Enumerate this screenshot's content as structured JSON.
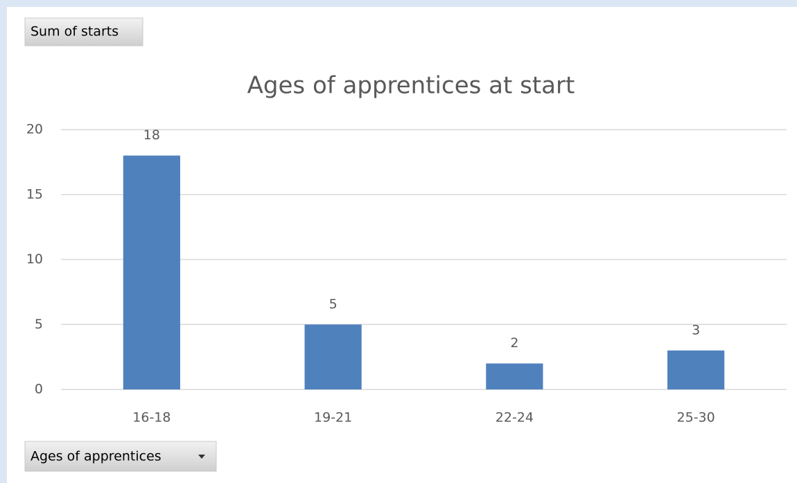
{
  "chart_data": {
    "type": "bar",
    "title": "Ages of apprentices at start",
    "categories": [
      "16-18",
      "19-21",
      "22-24",
      "25-30"
    ],
    "values": [
      18,
      5,
      2,
      3
    ],
    "color": "#4f81bd",
    "ylim": [
      0,
      20
    ],
    "yticks": [
      0,
      5,
      10,
      15,
      20
    ],
    "grid": true,
    "data_labels": true
  },
  "field_buttons": {
    "value_field": "Sum of starts",
    "axis_field": "Ages of apprentices"
  }
}
